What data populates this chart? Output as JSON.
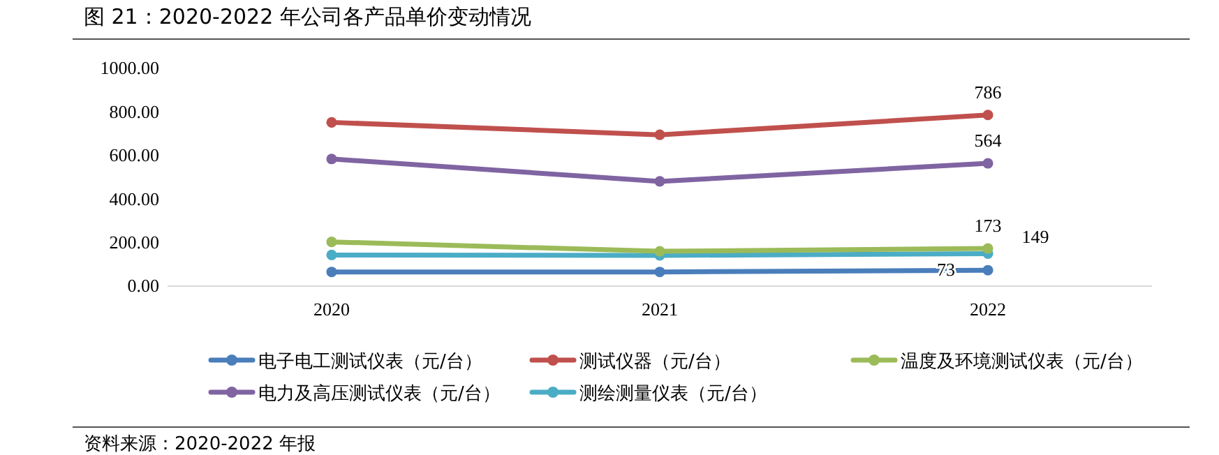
{
  "chart_data": {
    "type": "line",
    "title": "图 21：2020-2022 年公司各产品单价变动情况",
    "categories": [
      "2020",
      "2021",
      "2022"
    ],
    "ylim": [
      0,
      1000
    ],
    "yticks": [
      {
        "value": 0,
        "label": "0.00"
      },
      {
        "value": 200,
        "label": "200.00"
      },
      {
        "value": 400,
        "label": "400.00"
      },
      {
        "value": 600,
        "label": "600.00"
      },
      {
        "value": 800,
        "label": "800.00"
      },
      {
        "value": 1000,
        "label": "1000.00"
      }
    ],
    "series": [
      {
        "name": "电子电工测试仪表（元/台）",
        "color": "#4a7ebb",
        "values": [
          65,
          65,
          73
        ],
        "value_labels": [
          null,
          null,
          "73"
        ]
      },
      {
        "name": "测试仪器（元/台）",
        "color": "#c0504d",
        "values": [
          752,
          695,
          786
        ],
        "value_labels": [
          null,
          null,
          "786"
        ]
      },
      {
        "name": "温度及环境测试仪表（元/台）",
        "color": "#9bbb59",
        "values": [
          203,
          160,
          173
        ],
        "value_labels": [
          null,
          null,
          "173"
        ]
      },
      {
        "name": "电力及高压测试仪表（元/台）",
        "color": "#8064a2",
        "values": [
          584,
          481,
          564
        ],
        "value_labels": [
          null,
          null,
          "564"
        ]
      },
      {
        "name": "测绘测量仪表（元/台）",
        "color": "#4bacc6",
        "values": [
          143,
          141,
          149
        ],
        "value_labels": [
          null,
          null,
          "149"
        ]
      }
    ],
    "legend": "bottom",
    "marker": "circle",
    "line_style": "solid",
    "annotations": [
      "资料来源：2020-2022 年报"
    ]
  }
}
